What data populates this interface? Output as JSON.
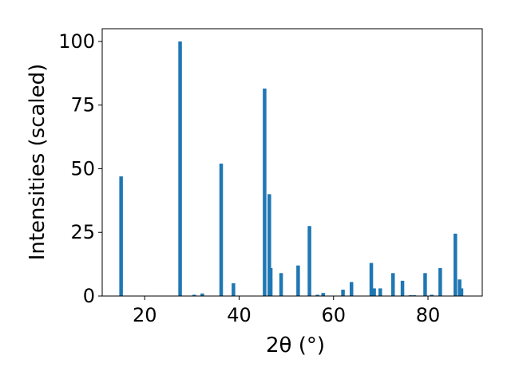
{
  "chart_data": {
    "type": "bar",
    "xlabel": "2θ (°)",
    "ylabel": "Intensities (scaled)",
    "xlim": [
      11,
      91.5
    ],
    "ylim": [
      0,
      105
    ],
    "x_ticks": [
      20,
      40,
      60,
      80
    ],
    "y_ticks": [
      0,
      25,
      50,
      75,
      100
    ],
    "grid": false,
    "bar_color": "#1f77b4",
    "x": [
      15.0,
      27.5,
      30.5,
      32.2,
      36.2,
      38.8,
      45.4,
      46.4,
      46.7,
      48.9,
      52.5,
      54.9,
      56.6,
      57.8,
      62.0,
      63.8,
      68.0,
      68.6,
      69.9,
      72.6,
      74.6,
      76.3,
      77.1,
      79.4,
      80.8,
      82.6,
      85.8,
      86.7,
      87.1
    ],
    "values": [
      47,
      100,
      0.5,
      1,
      52,
      5,
      81.5,
      40,
      11,
      9,
      12,
      27.5,
      0.5,
      1.2,
      2.5,
      5.5,
      13,
      3,
      3,
      9,
      6,
      0.3,
      0.3,
      9,
      0.5,
      11,
      24.5,
      6.5,
      3
    ]
  }
}
